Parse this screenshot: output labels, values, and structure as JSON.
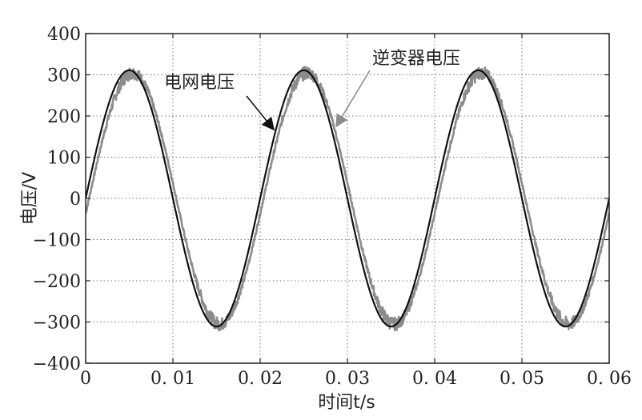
{
  "chart_data": {
    "type": "line",
    "xlabel": "时间t/s",
    "ylabel": "电压/V",
    "xlim": [
      0,
      0.06
    ],
    "ylim": [
      -400,
      400
    ],
    "x_ticks": [
      0,
      0.01,
      0.02,
      0.03,
      0.04,
      0.05,
      0.06
    ],
    "x_tick_labels": [
      "0",
      "0. 01",
      "0. 02",
      "0. 03",
      "0. 04",
      "0. 05",
      "0. 06"
    ],
    "y_ticks": [
      400,
      300,
      200,
      100,
      0,
      -100,
      -200,
      -300,
      -400
    ],
    "y_tick_labels": [
      "400",
      "300",
      "200",
      "100",
      "0",
      "−100",
      "−200",
      "−300",
      "−400"
    ],
    "grid": true,
    "series": [
      {
        "name": "电网电压",
        "color": "#111111",
        "amplitude": 311,
        "frequency_hz": 50,
        "phase_deg": 0,
        "x": [
          0,
          0.0025,
          0.005,
          0.0075,
          0.01,
          0.0125,
          0.015,
          0.0175,
          0.02,
          0.0225,
          0.025,
          0.0275,
          0.03,
          0.0325,
          0.035,
          0.0375,
          0.04,
          0.0425,
          0.045,
          0.0475,
          0.05,
          0.0525,
          0.055,
          0.0575,
          0.06
        ],
        "values": [
          0,
          220,
          311,
          220,
          0,
          -220,
          -311,
          -220,
          0,
          220,
          311,
          220,
          0,
          -220,
          -311,
          -220,
          0,
          220,
          311,
          220,
          0,
          -220,
          -311,
          -220,
          0
        ]
      },
      {
        "name": "逆变器电压",
        "color": "#8c8c8c",
        "amplitude": 305,
        "frequency_hz": 50,
        "phase_deg": -7,
        "ripple": 12,
        "x": [
          0,
          0.0025,
          0.005,
          0.0075,
          0.01,
          0.0125,
          0.015,
          0.0175,
          0.02,
          0.0225,
          0.025,
          0.0275,
          0.03,
          0.0325,
          0.035,
          0.0375,
          0.04,
          0.0425,
          0.045,
          0.0475,
          0.05,
          0.0525,
          0.055,
          0.0575,
          0.06
        ],
        "values": [
          -37,
          187,
          303,
          240,
          37,
          -187,
          -303,
          -240,
          -37,
          187,
          303,
          240,
          37,
          -187,
          -303,
          -240,
          -37,
          187,
          303,
          240,
          37,
          -187,
          -303,
          -240,
          -37
        ]
      }
    ],
    "annotations": [
      {
        "text": "电网电压",
        "series": 0,
        "arrow_to": [
          0.0219,
          150
        ]
      },
      {
        "text": "逆变器电压",
        "series": 1,
        "arrow_to": [
          0.0285,
          170
        ]
      }
    ]
  }
}
